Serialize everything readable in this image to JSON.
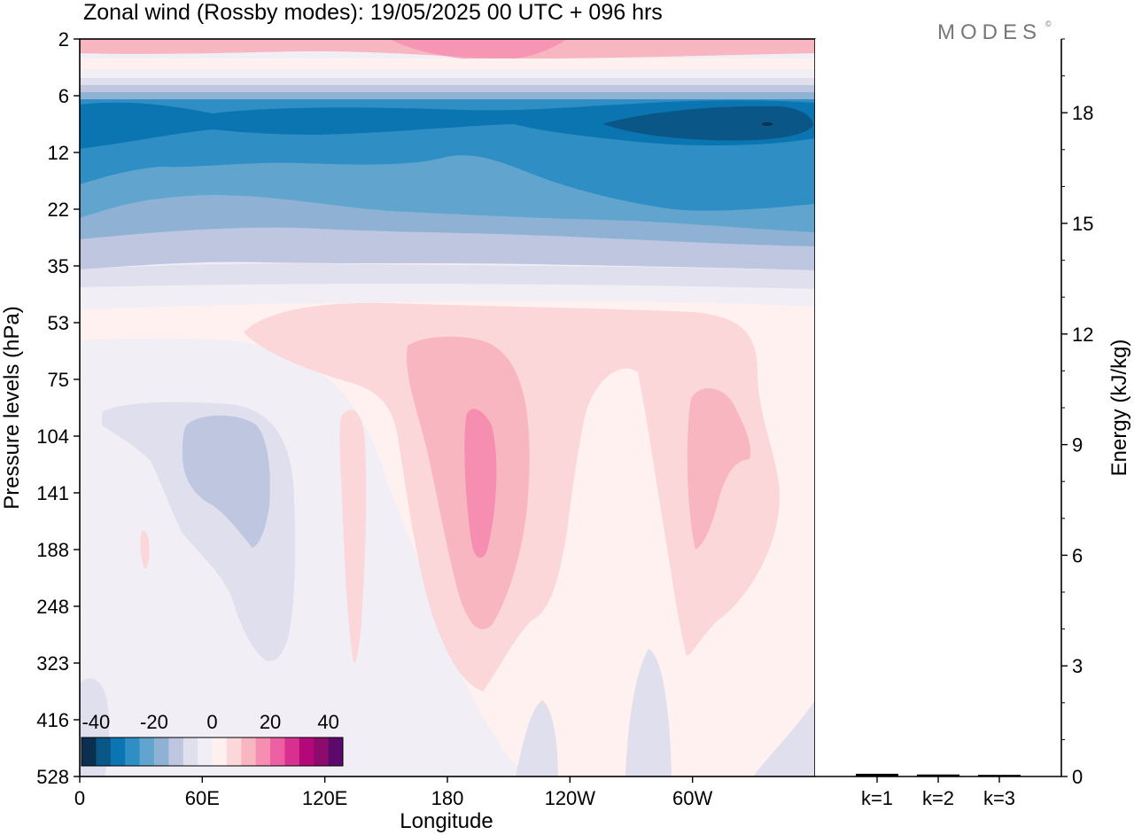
{
  "chart_data": [
    {
      "type": "heatmap",
      "title": "Zonal wind (Rossby modes):  19/05/2025  00 UTC  + 096 hrs",
      "xlabel": "Longitude",
      "ylabel": "Pressure levels (hPa)",
      "x_ticks": [
        "0",
        "60E",
        "120E",
        "180",
        "120W",
        "60W"
      ],
      "x_tick_degrees": [
        0,
        60,
        120,
        180,
        240,
        300
      ],
      "xlim": [
        0,
        360
      ],
      "y_ticks": [
        "2",
        "6",
        "12",
        "22",
        "35",
        "53",
        "75",
        "104",
        "141",
        "188",
        "248",
        "323",
        "416",
        "528"
      ],
      "y_scale": "log-like (model pressure levels)",
      "colorbar": {
        "tick_labels": [
          "-40",
          "-20",
          "0",
          "20",
          "40"
        ],
        "range": [
          -45,
          45
        ],
        "step": 5,
        "colors": [
          "#0b2f4e",
          "#0a5687",
          "#0b75b1",
          "#2f8fc4",
          "#61a5cf",
          "#8fb2d4",
          "#bfc6e0",
          "#dfdfee",
          "#f1eef5",
          "#fff1ef",
          "#fbd7d9",
          "#f8b6c1",
          "#f58eb0",
          "#ec5fa2",
          "#d8308f",
          "#b4087a",
          "#8e0b6e",
          "#5b0a6b"
        ]
      },
      "description_regions": {
        "upper_easterlies_max": -40,
        "stratopause_westerlies_max": 20,
        "troposphere_westerly_jets_max": 25,
        "troposphere_easterly_min": -10
      }
    },
    {
      "type": "bar",
      "categories": [
        "k=1",
        "k=2",
        "k=3"
      ],
      "values": [
        0.05,
        0.03,
        0.02
      ],
      "ylabel": "Energy (kJ/kg)",
      "ylim": [
        0,
        20
      ],
      "y_ticks": [
        "0",
        "3",
        "6",
        "9",
        "12",
        "15",
        "18"
      ]
    }
  ],
  "branding": {
    "logo_text": "MODES",
    "logo_mark": "©"
  }
}
